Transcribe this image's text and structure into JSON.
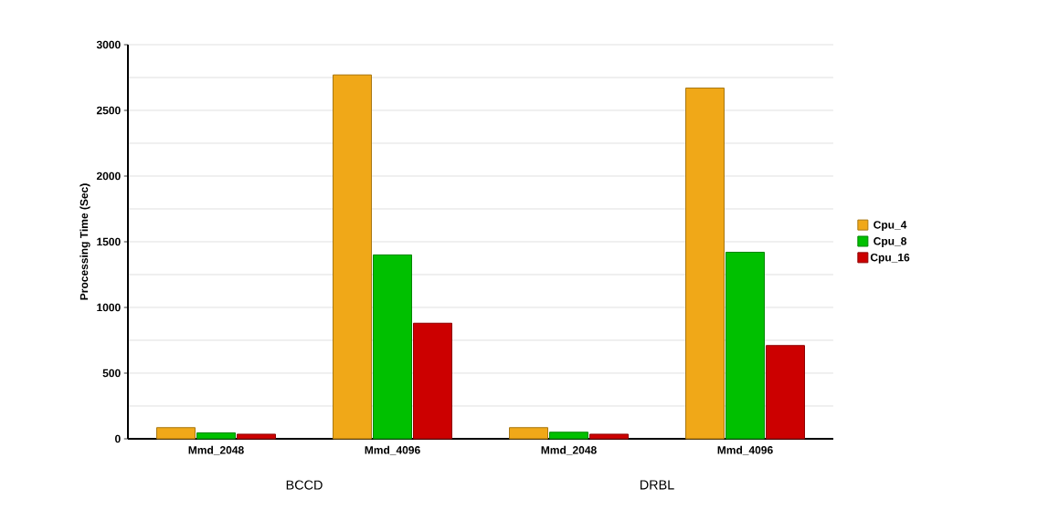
{
  "chart_data": {
    "type": "bar",
    "ylabel": "Processing Time (Sec)",
    "categories": [
      "Mmd_2048",
      "Mmd_4096",
      "Mmd_2048",
      "Mmd_4096"
    ],
    "series": [
      {
        "name": "Cpu_4",
        "color": "#f0a818",
        "values": [
          85,
          2770,
          85,
          2670
        ]
      },
      {
        "name": "Cpu_8",
        "color": "#00c000",
        "values": [
          45,
          1400,
          50,
          1420
        ]
      },
      {
        "name": "Cpu_16",
        "color": "#cc0000",
        "values": [
          35,
          880,
          35,
          710
        ]
      }
    ],
    "annotations": [
      "BCCD",
      "DRBL"
    ],
    "ylim": [
      0,
      3000
    ],
    "yticks": [
      0,
      500,
      1000,
      1500,
      2000,
      2500,
      3000
    ],
    "grid": "y",
    "legend": "right"
  }
}
